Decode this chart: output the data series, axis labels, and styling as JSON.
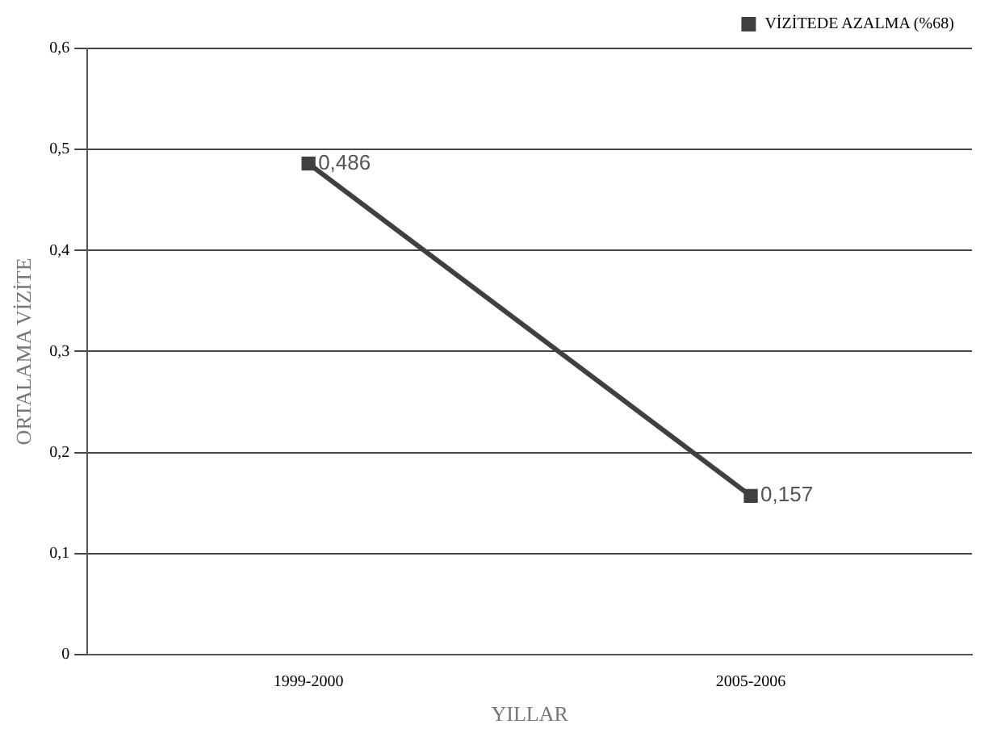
{
  "chart_data": {
    "type": "line",
    "xlabel": "YILLAR",
    "ylabel": "ORTALAMA VİZİTE",
    "categories": [
      "1999-2000",
      "2005-2006"
    ],
    "series": [
      {
        "name": "VİZİTEDE AZALMA (%68)",
        "color": "#404040",
        "values": [
          0.486,
          0.157
        ],
        "value_labels": [
          "0,486",
          "0,157"
        ]
      }
    ],
    "ylim": [
      0,
      0.6
    ],
    "yticks": [
      0,
      {
        "value": 0.1,
        "label": "0,1"
      },
      {
        "value": 0.2,
        "label": "0,2"
      },
      {
        "value": 0.3,
        "label": "0,3"
      },
      {
        "value": 0.4,
        "label": "0,4"
      },
      {
        "value": 0.5,
        "label": "0,5"
      },
      {
        "value": 0.6,
        "label": "0,6"
      }
    ],
    "grid": "y",
    "legend": "top right",
    "marker": "square",
    "line_style": "solid"
  }
}
